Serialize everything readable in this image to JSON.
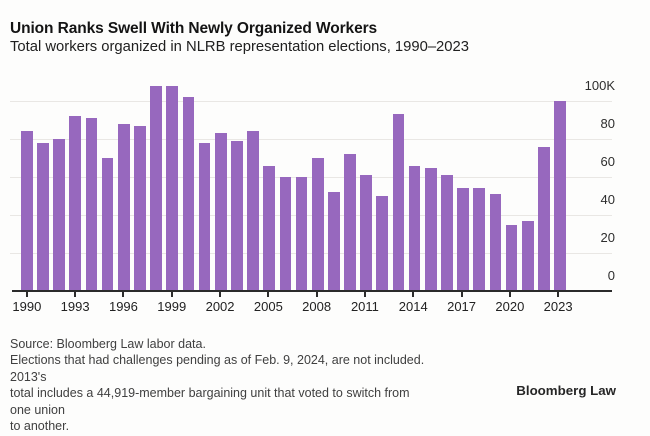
{
  "header": {
    "title": "Union Ranks Swell With Newly Organized Workers",
    "subtitle": "Total workers organized in NLRB representation elections, 1990–2023"
  },
  "chart_data": {
    "type": "bar",
    "title": "Union Ranks Swell With Newly Organized Workers",
    "subtitle": "Total workers organized in NLRB representation elections, 1990–2023",
    "unit": "thousands of workers (K)",
    "categories": [
      "1990",
      "1991",
      "1992",
      "1993",
      "1994",
      "1995",
      "1996",
      "1997",
      "1998",
      "1999",
      "2000",
      "2001",
      "2002",
      "2003",
      "2004",
      "2005",
      "2006",
      "2007",
      "2008",
      "2009",
      "2010",
      "2011",
      "2012",
      "2013",
      "2014",
      "2015",
      "2016",
      "2017",
      "2018",
      "2019",
      "2020",
      "2021",
      "2022",
      "2023"
    ],
    "values": [
      84,
      78,
      80,
      92,
      91,
      70,
      88,
      87,
      108,
      108,
      102,
      78,
      83,
      79,
      84,
      66,
      60,
      60,
      70,
      52,
      72,
      61,
      50,
      93,
      66,
      65,
      61,
      54,
      54,
      51,
      35,
      37,
      76,
      100
    ],
    "x_tick_labels": [
      "1990",
      "1993",
      "1996",
      "1999",
      "2002",
      "2005",
      "2008",
      "2011",
      "2014",
      "2017",
      "2020",
      "2023"
    ],
    "y_tick_labels": [
      "100K",
      "80",
      "60",
      "40",
      "20",
      "0"
    ],
    "y_axis_values": [
      100,
      80,
      60,
      40,
      20,
      0
    ],
    "ylim": [
      0,
      110
    ],
    "grid": true,
    "legend": "none",
    "bar_color": "#9768be"
  },
  "footer": {
    "source": "Source: Bloomberg Law labor data.",
    "note_lines": [
      "Elections that had challenges pending as of Feb. 9, 2024, are not included. 2013's",
      "total includes a 44,919-member bargaining unit that voted to switch from one union",
      "to another."
    ],
    "brand": "Bloomberg Law"
  },
  "colors": {
    "bar": "#9768be",
    "gridline": "#e9e7e4",
    "axis": "#2b2b2b",
    "background": "#fdfdfc"
  }
}
